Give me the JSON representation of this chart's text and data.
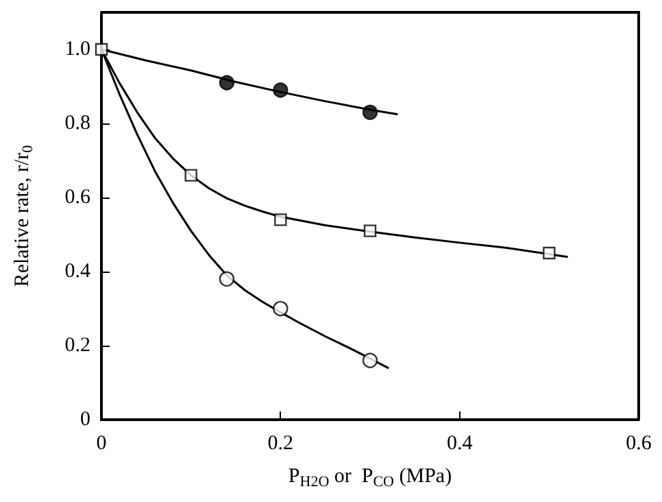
{
  "chart_data": {
    "type": "scatter",
    "xlabel": "P$_{H2O}$ or  P$_{CO}$ (MPa)",
    "ylabel": "Relative rate, r/r$_{0}$",
    "xlim": [
      0,
      0.6
    ],
    "ylim": [
      0,
      1.1
    ],
    "xticks": [
      0,
      0.2,
      0.4,
      0.6
    ],
    "yticks": [
      0,
      {
        "value": 0.2,
        "label": "0.2"
      },
      {
        "value": 0.4,
        "label": "0.4"
      },
      {
        "value": 0.6,
        "label": "0.6"
      },
      {
        "value": 0.8,
        "label": "0.8"
      },
      {
        "value": 1.0,
        "label": "1.0"
      }
    ],
    "grid": false,
    "series": [
      {
        "marker": "circle",
        "color": "#000000",
        "x": [
          0.14,
          0.2,
          0.3
        ],
        "values": [
          0.91,
          0.89,
          0.83
        ]
      },
      {
        "marker": "square",
        "color": "#ffffff",
        "x": [
          0,
          0.1,
          0.2,
          0.3,
          0.5
        ],
        "values": [
          1.0,
          0.66,
          0.54,
          0.51,
          0.45
        ]
      },
      {
        "marker": "circle",
        "color": "#ffffff",
        "x": [
          0.14,
          0.2,
          0.3
        ],
        "values": [
          0.38,
          0.3,
          0.16
        ]
      },
      {
        "type": "line",
        "marker": "none",
        "color": "#000000",
        "x": [
          0,
          0.05,
          0.1,
          0.15,
          0.2,
          0.25,
          0.3,
          0.33
        ],
        "values": [
          1.0,
          0.97,
          0.943,
          0.912,
          0.885,
          0.86,
          0.837,
          0.825
        ]
      },
      {
        "type": "line",
        "marker": "none",
        "color": "#000000",
        "x": [
          0,
          0.02,
          0.04,
          0.06,
          0.08,
          0.1,
          0.12,
          0.14,
          0.16,
          0.18,
          0.2,
          0.25,
          0.3,
          0.35,
          0.4,
          0.45,
          0.52
        ],
        "values": [
          1.0,
          0.91,
          0.83,
          0.76,
          0.705,
          0.66,
          0.625,
          0.598,
          0.578,
          0.562,
          0.548,
          0.525,
          0.508,
          0.492,
          0.478,
          0.465,
          0.44
        ]
      },
      {
        "type": "line",
        "marker": "none",
        "color": "#000000",
        "x": [
          0,
          0.02,
          0.04,
          0.06,
          0.08,
          0.1,
          0.12,
          0.14,
          0.16,
          0.18,
          0.2,
          0.22,
          0.25,
          0.28,
          0.3,
          0.32
        ],
        "values": [
          1.0,
          0.88,
          0.77,
          0.67,
          0.585,
          0.51,
          0.445,
          0.39,
          0.35,
          0.318,
          0.29,
          0.263,
          0.225,
          0.19,
          0.165,
          0.14
        ]
      }
    ]
  }
}
